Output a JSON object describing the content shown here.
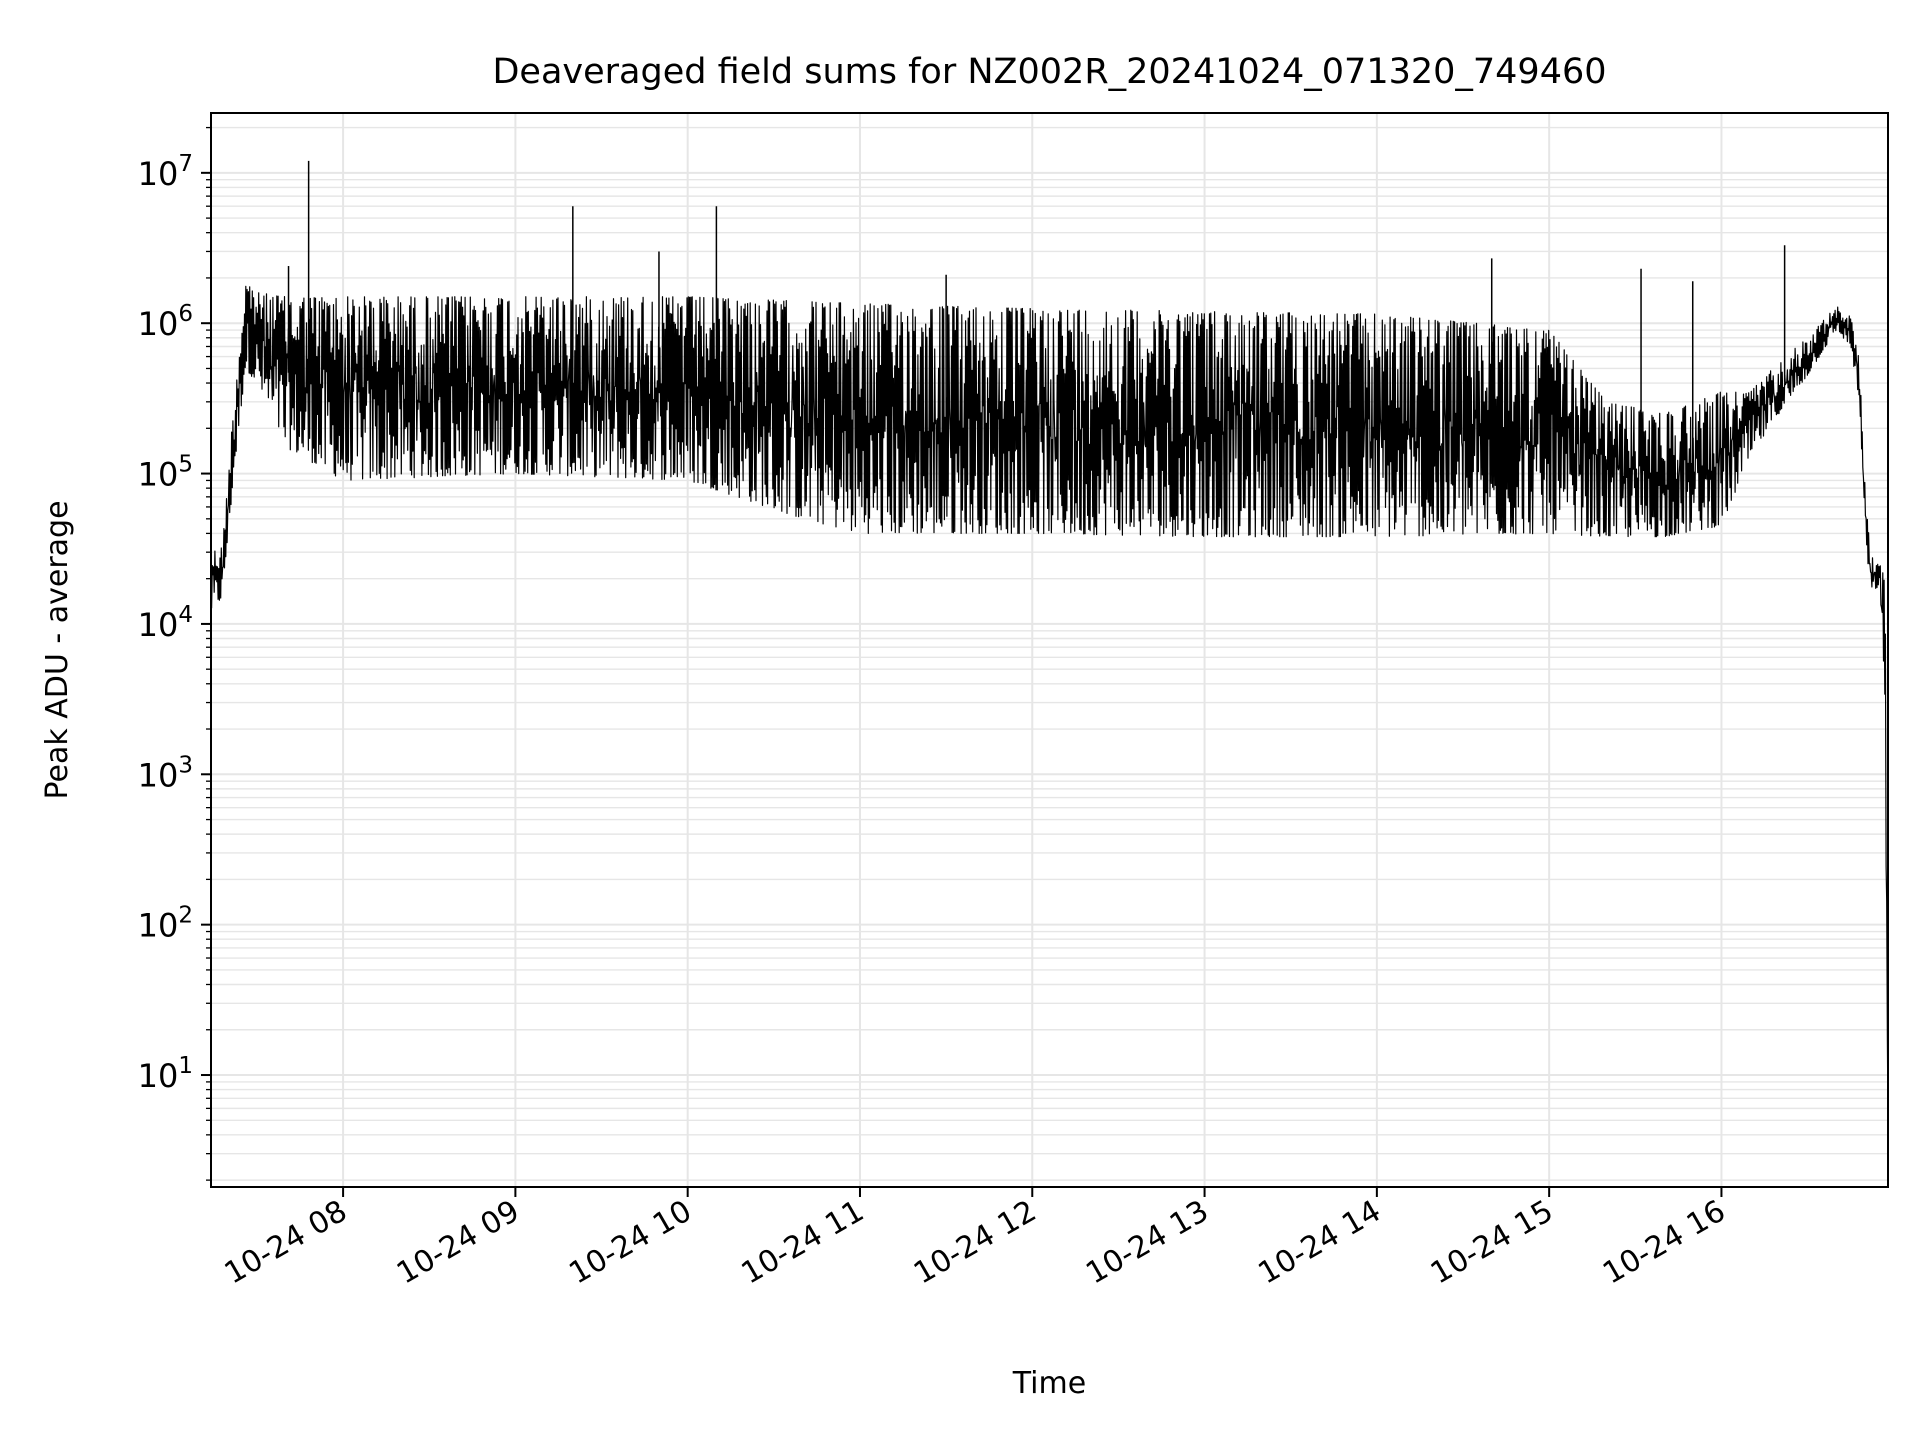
{
  "chart_data": {
    "type": "line",
    "title": "Deaveraged field sums for NZ002R_20241024_071320_749460",
    "xlabel": "Time",
    "ylabel": "Peak ADU - average",
    "yscale": "log",
    "grid": true,
    "xlim": [
      "10-24 07:14",
      "10-24 16:58"
    ],
    "ylim": [
      1.8,
      25000000
    ],
    "x_ticks": [
      "10-24 08",
      "10-24 09",
      "10-24 10",
      "10-24 11",
      "10-24 12",
      "10-24 13",
      "10-24 14",
      "10-24 15",
      "10-24 16"
    ],
    "y_ticks": [
      {
        "base": "10",
        "exp": "1",
        "value": 10
      },
      {
        "base": "10",
        "exp": "2",
        "value": 100
      },
      {
        "base": "10",
        "exp": "3",
        "value": 1000
      },
      {
        "base": "10",
        "exp": "4",
        "value": 10000
      },
      {
        "base": "10",
        "exp": "5",
        "value": 100000
      },
      {
        "base": "10",
        "exp": "6",
        "value": 1000000
      },
      {
        "base": "10",
        "exp": "7",
        "value": 10000000
      }
    ],
    "line_color": "#000000",
    "grid_color": "#e6e6e6",
    "series": [
      {
        "envelope": [
          {
            "x": "10-24 07:14",
            "low": 12000,
            "high": 30000
          },
          {
            "x": "10-24 07:18",
            "low": 15000,
            "high": 33000
          },
          {
            "x": "10-24 07:22",
            "low": 100000,
            "high": 300000
          },
          {
            "x": "10-24 07:26",
            "low": 500000,
            "high": 2000000
          },
          {
            "x": "10-24 07:30",
            "low": 400000,
            "high": 1600000
          },
          {
            "x": "10-24 07:40",
            "low": 150000,
            "high": 1500000
          },
          {
            "x": "10-24 08:00",
            "low": 90000,
            "high": 1500000
          },
          {
            "x": "10-24 09:00",
            "low": 100000,
            "high": 1500000
          },
          {
            "x": "10-24 10:00",
            "low": 90000,
            "high": 1500000
          },
          {
            "x": "10-24 10:40",
            "low": 50000,
            "high": 1400000
          },
          {
            "x": "10-24 11:00",
            "low": 40000,
            "high": 1350000
          },
          {
            "x": "10-24 12:00",
            "low": 40000,
            "high": 1250000
          },
          {
            "x": "10-24 13:00",
            "low": 38000,
            "high": 1200000
          },
          {
            "x": "10-24 14:00",
            "low": 38000,
            "high": 1150000
          },
          {
            "x": "10-24 15:00",
            "low": 40000,
            "high": 900000
          },
          {
            "x": "10-24 15:20",
            "low": 38000,
            "high": 300000
          },
          {
            "x": "10-24 15:40",
            "low": 38000,
            "high": 250000
          },
          {
            "x": "10-24 16:00",
            "low": 45000,
            "high": 350000
          },
          {
            "x": "10-24 16:10",
            "low": 130000,
            "high": 350000
          },
          {
            "x": "10-24 16:20",
            "low": 250000,
            "high": 550000
          },
          {
            "x": "10-24 16:30",
            "low": 450000,
            "high": 800000
          },
          {
            "x": "10-24 16:40",
            "low": 900000,
            "high": 1300000
          },
          {
            "x": "10-24 16:45",
            "low": 700000,
            "high": 1100000
          },
          {
            "x": "10-24 16:48",
            "low": 300000,
            "high": 600000
          },
          {
            "x": "10-24 16:50",
            "low": 40000,
            "high": 80000
          },
          {
            "x": "10-24 16:52",
            "low": 16000,
            "high": 28000
          },
          {
            "x": "10-24 16:55",
            "low": 18000,
            "high": 26000
          },
          {
            "x": "10-24 16:57",
            "low": 2000,
            "high": 20000
          },
          {
            "x": "10-24 16:58",
            "low": 3,
            "high": 5
          }
        ],
        "spikes": [
          {
            "x": "10-24 07:48",
            "y": 12000000
          },
          {
            "x": "10-24 09:20",
            "y": 6000000
          },
          {
            "x": "10-24 10:10",
            "y": 6000000
          },
          {
            "x": "10-24 09:50",
            "y": 3000000
          },
          {
            "x": "10-24 14:40",
            "y": 2700000
          },
          {
            "x": "10-24 15:32",
            "y": 2300000
          },
          {
            "x": "10-24 15:50",
            "y": 1900000
          },
          {
            "x": "10-24 16:22",
            "y": 3300000
          },
          {
            "x": "10-24 07:41",
            "y": 2400000
          },
          {
            "x": "10-24 11:30",
            "y": 2100000
          }
        ]
      }
    ]
  }
}
